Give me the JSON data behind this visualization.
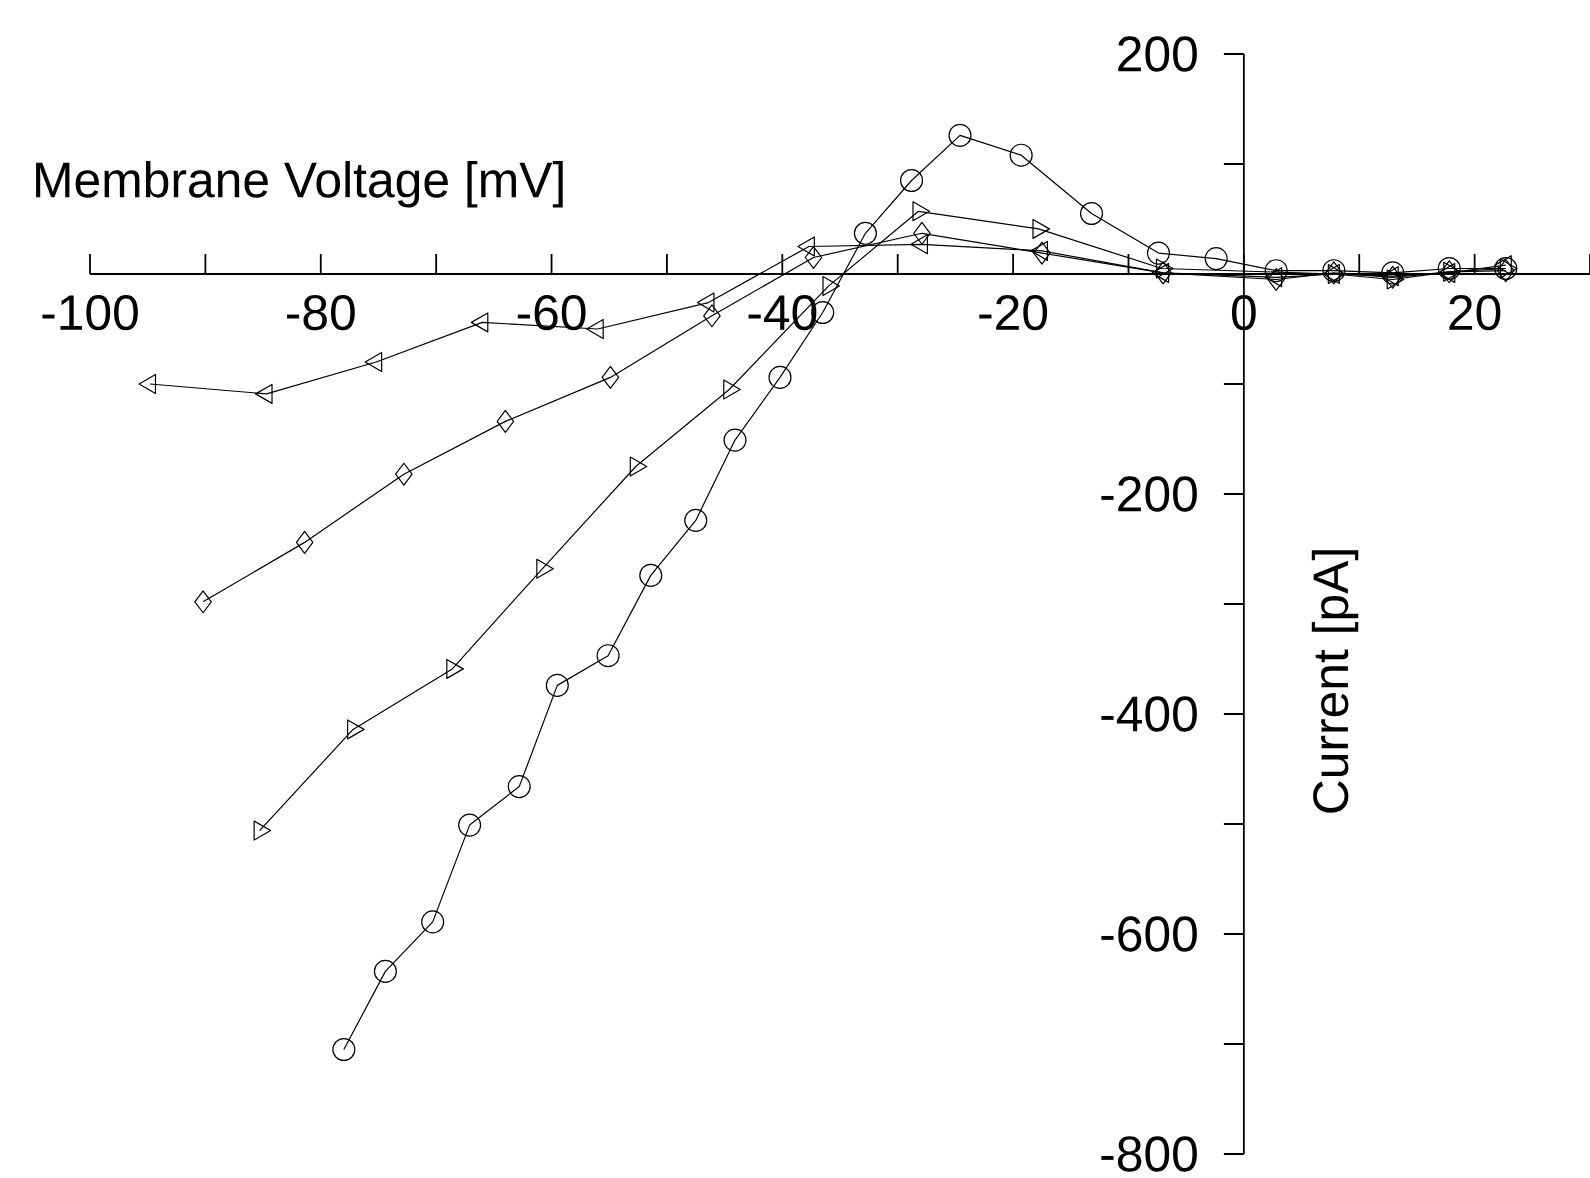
{
  "chart_data": {
    "type": "line",
    "xlabel": "Membrane Voltage [mV]",
    "ylabel": "Current [pA]",
    "xlim": [
      -100,
      30
    ],
    "ylim": [
      -800,
      200
    ],
    "xticks": [
      -100,
      {
        "value": -90,
        "label": null
      },
      -80,
      {
        "value": -70,
        "label": null
      },
      -60,
      {
        "value": -50,
        "label": null
      },
      -40,
      {
        "value": -30,
        "label": null
      },
      -20,
      {
        "value": -10,
        "label": null
      },
      0,
      {
        "value": 10,
        "label": null
      },
      20,
      {
        "value": 30,
        "label": null
      }
    ],
    "yticks": [
      -800,
      {
        "value": -700,
        "label": null
      },
      -600,
      {
        "value": -500,
        "label": null
      },
      -400,
      {
        "value": -300,
        "label": null
      },
      -200,
      {
        "value": -100,
        "label": null
      },
      {
        "value": 100,
        "label": null
      },
      200
    ],
    "series": [
      {
        "color": "#000000",
        "marker": "circle",
        "x": [
          -78,
          -74.4,
          -70.3,
          -67.1,
          -62.8,
          -59.5,
          -55.1,
          -51.4,
          -47.5,
          -44.1,
          -40.2,
          -36.5,
          -32.8,
          -28.8,
          -24.6,
          -19.3,
          -13.2,
          -7.4,
          -2.4,
          2.8,
          7.8,
          12.9,
          17.8,
          22.7
        ],
        "values": [
          -705,
          -634,
          -589,
          -501,
          -466,
          -374,
          -347,
          -274,
          -224,
          -151,
          -94,
          -35,
          37,
          85,
          126,
          108,
          55,
          19,
          14,
          3,
          3,
          1,
          5,
          5
        ]
      },
      {
        "color": "#000000",
        "marker": "triangle-right",
        "x": [
          -85.3,
          -77.2,
          -68.6,
          -60.8,
          -52.7,
          -44.6,
          -36,
          -28.2,
          -17.8,
          -7.1,
          2.8,
          7.8,
          12.9,
          17.8,
          22.7
        ],
        "values": [
          -506,
          -414,
          -359,
          -268,
          -175,
          -105,
          -11,
          57,
          41,
          5,
          null,
          0,
          -5,
          2,
          5
        ]
      },
      {
        "color": "#000000",
        "marker": "diamond",
        "x": [
          -90.2,
          -81.4,
          -72.8,
          -64,
          -54.9,
          -46.1,
          -37.3,
          -27.9,
          -17.5,
          -7,
          2.8,
          7.8,
          12.9,
          17.8,
          22.7
        ],
        "values": [
          -298,
          -244,
          -182,
          -134,
          -94,
          -38,
          15,
          37,
          19,
          1,
          -5,
          1,
          -3,
          2,
          3
        ]
      },
      {
        "color": "#000000",
        "marker": "triangle-left",
        "x": [
          -94.8,
          -84.7,
          -75.2,
          -66,
          -56,
          -46.4,
          -37.7,
          -27.9,
          -17.5,
          -7,
          2.8,
          7.8,
          12.9,
          17.8,
          22.7
        ],
        "values": [
          -100,
          -109,
          -80,
          -44,
          -50,
          -26,
          25,
          27,
          21,
          1,
          -3,
          0,
          -2,
          1,
          8
        ]
      }
    ]
  }
}
